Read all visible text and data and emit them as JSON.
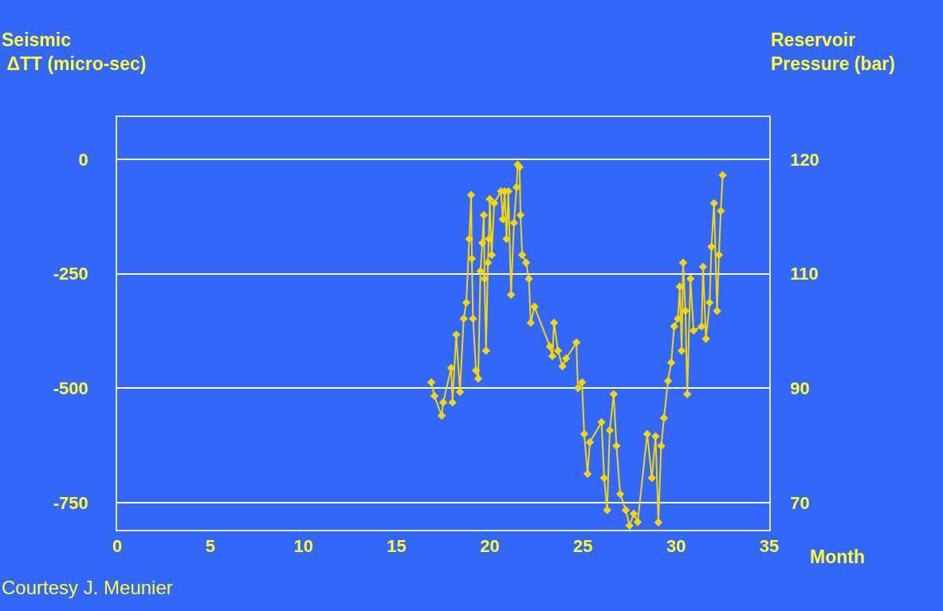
{
  "chart_data": {
    "type": "line",
    "ylabel": "Seismic\n ΔTT (micro-sec)",
    "y2label": "Reservoir\nPressure (bar)",
    "xlabel": "Month",
    "annotations": [
      "Courtesy J. Meunier"
    ],
    "x": [
      16.86,
      17.03,
      17.42,
      17.5,
      17.93,
      18.0,
      18.2,
      18.4,
      18.6,
      18.74,
      18.9,
      19.0,
      19.04,
      19.1,
      19.26,
      19.38,
      19.5,
      19.6,
      19.68,
      19.72,
      19.8,
      19.9,
      19.95,
      20.0,
      20.1,
      20.24,
      20.6,
      20.7,
      20.8,
      20.9,
      21.0,
      21.14,
      21.3,
      21.44,
      21.5,
      21.6,
      21.65,
      21.74,
      21.95,
      22.1,
      22.2,
      22.4,
      23.23,
      23.36,
      23.45,
      23.66,
      23.9,
      24.1,
      24.65,
      24.73,
      24.95,
      25.07,
      25.25,
      25.37,
      26.0,
      26.14,
      26.3,
      26.44,
      26.65,
      26.8,
      27.0,
      27.3,
      27.5,
      27.73,
      27.94,
      28.45,
      28.7,
      28.9,
      29.05,
      29.2,
      29.35,
      29.57,
      29.74,
      29.9,
      30.1,
      30.2,
      30.3,
      30.38,
      30.5,
      30.6,
      30.77,
      30.94,
      31.37,
      31.45,
      31.6,
      31.8,
      31.9,
      32.04,
      32.2,
      32.3,
      32.4,
      32.5
    ],
    "series": [
      {
        "color": "#f5d800",
        "values": [
          -487,
          -517,
          -560,
          -531,
          -456,
          -531,
          -383,
          -508,
          -348,
          -313,
          -174,
          -78,
          -217,
          -348,
          -461,
          -479,
          -244,
          -183,
          -122,
          -261,
          -418,
          -226,
          -174,
          -87,
          -209,
          -96,
          -70,
          -131,
          -70,
          -174,
          -70,
          -296,
          -139,
          -61,
          -12,
          -17,
          -122,
          -209,
          -226,
          -261,
          -357,
          -322,
          -409,
          -430,
          -357,
          -418,
          -452,
          -435,
          -400,
          -500,
          -487,
          -600,
          -687,
          -618,
          -574,
          -696,
          -766,
          -592,
          -513,
          -626,
          -731,
          -766,
          -800,
          -774,
          -792,
          -600,
          -696,
          -605,
          -793,
          -626,
          -565,
          -484,
          -444,
          -365,
          -348,
          -278,
          -418,
          -226,
          -331,
          -513,
          -261,
          -374,
          -365,
          -235,
          -392,
          -313,
          -191,
          -96,
          -331,
          -209,
          -113,
          -35
        ]
      }
    ],
    "xlim": [
      0,
      35
    ],
    "xticks": [
      0,
      5,
      10,
      15,
      20,
      25,
      30,
      35
    ],
    "ylim": [
      -809,
      92
    ],
    "yticks": [
      0,
      -250,
      -500,
      -750
    ],
    "y2_categories": [
      "120",
      "110",
      "90",
      "70"
    ],
    "grid": "y",
    "marker": "diamond",
    "line_style": "solid"
  }
}
